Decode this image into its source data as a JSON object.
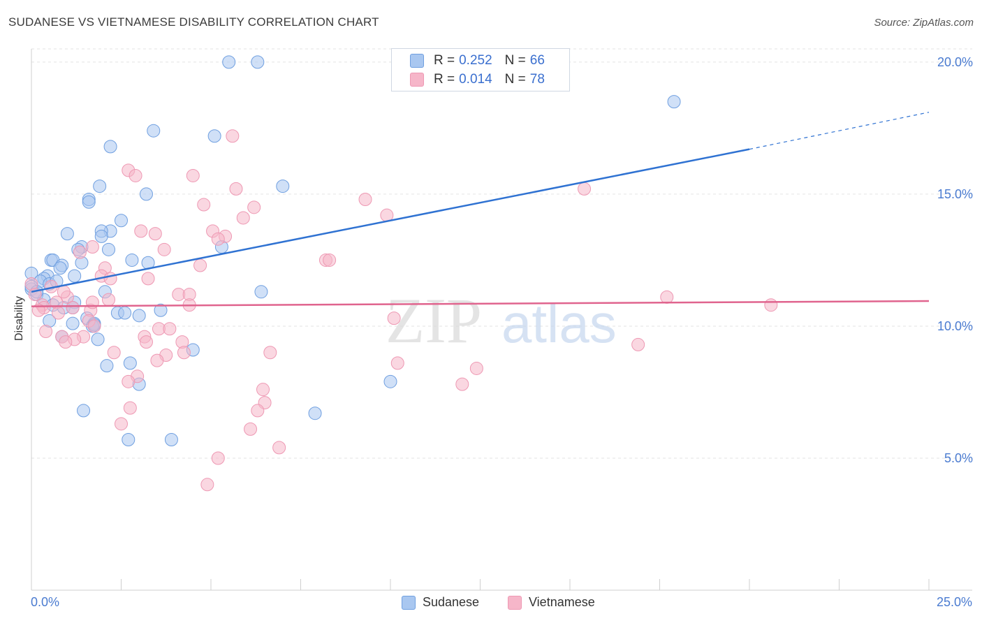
{
  "header": {
    "title": "SUDANESE VS VIETNAMESE DISABILITY CORRELATION CHART",
    "source": "Source: ZipAtlas.com"
  },
  "watermark": {
    "part1": "ZIP",
    "part2": "atlas"
  },
  "legend": {
    "rows": [
      {
        "r_label": "R =",
        "r_value": "0.252",
        "n_label": "N =",
        "n_value": "66"
      },
      {
        "r_label": "R =",
        "r_value": "0.014",
        "n_label": "N =",
        "n_value": "78"
      }
    ]
  },
  "bottom_legend": [
    {
      "label": "Sudanese"
    },
    {
      "label": "Vietnamese"
    }
  ],
  "axis_labels": {
    "x_min": "0.0%",
    "x_max": "25.0%"
  },
  "colors": {
    "blue_fill": "#a9c7f0",
    "blue_stroke": "#6f9fe0",
    "blue_line": "#2f72d2",
    "pink_fill": "#f6b6c9",
    "pink_stroke": "#ee98b3",
    "pink_line": "#e0648e",
    "tick_label": "#4a7bd0",
    "grid": "#e3e3e3"
  },
  "chart_data": {
    "type": "scatter",
    "title": "SUDANESE VS VIETNAMESE DISABILITY CORRELATION CHART",
    "xlabel": "",
    "ylabel": "Disability",
    "xlim": [
      0,
      25
    ],
    "ylim": [
      0,
      20.5
    ],
    "yticks": [
      5,
      10,
      15,
      20
    ],
    "ytick_labels": [
      "5.0%",
      "10.0%",
      "15.0%",
      "20.0%"
    ],
    "grid": true,
    "legend_position": "top-center",
    "series": [
      {
        "name": "Sudanese",
        "r": 0.252,
        "n": 66,
        "trend": {
          "x0": 0,
          "y0": 11.3,
          "x1": 20,
          "y1": 16.7,
          "dashed_to_x": 25,
          "dashed_to_y": 18.1
        },
        "points": [
          [
            5.5,
            20.0
          ],
          [
            6.3,
            20.0
          ],
          [
            17.9,
            18.5
          ],
          [
            3.4,
            17.4
          ],
          [
            5.1,
            17.2
          ],
          [
            2.2,
            16.8
          ],
          [
            7.0,
            15.3
          ],
          [
            1.9,
            15.3
          ],
          [
            3.2,
            15.0
          ],
          [
            1.6,
            14.8
          ],
          [
            1.6,
            14.7
          ],
          [
            2.5,
            14.0
          ],
          [
            1.0,
            13.5
          ],
          [
            2.2,
            13.6
          ],
          [
            1.95,
            13.6
          ],
          [
            1.95,
            13.4
          ],
          [
            1.4,
            13.0
          ],
          [
            1.3,
            12.9
          ],
          [
            5.3,
            13.0
          ],
          [
            2.15,
            12.9
          ],
          [
            0.55,
            12.5
          ],
          [
            0.6,
            12.5
          ],
          [
            2.8,
            12.5
          ],
          [
            3.25,
            12.4
          ],
          [
            1.4,
            12.4
          ],
          [
            0.85,
            12.3
          ],
          [
            0.8,
            12.2
          ],
          [
            0.0,
            12.0
          ],
          [
            1.2,
            11.9
          ],
          [
            0.45,
            11.9
          ],
          [
            0.35,
            11.8
          ],
          [
            0.25,
            11.7
          ],
          [
            0.5,
            11.6
          ],
          [
            0.7,
            11.7
          ],
          [
            0.0,
            11.4
          ],
          [
            2.05,
            11.3
          ],
          [
            6.4,
            11.3
          ],
          [
            0.15,
            11.2
          ],
          [
            0.35,
            11.0
          ],
          [
            1.2,
            10.9
          ],
          [
            0.6,
            10.8
          ],
          [
            0.9,
            10.7
          ],
          [
            1.15,
            10.7
          ],
          [
            3.6,
            10.6
          ],
          [
            2.4,
            10.5
          ],
          [
            2.6,
            10.5
          ],
          [
            3.0,
            10.4
          ],
          [
            1.55,
            10.3
          ],
          [
            0.5,
            10.2
          ],
          [
            1.15,
            10.1
          ],
          [
            1.75,
            10.1
          ],
          [
            1.7,
            10.0
          ],
          [
            0.85,
            9.6
          ],
          [
            1.85,
            9.5
          ],
          [
            4.5,
            9.1
          ],
          [
            2.1,
            8.5
          ],
          [
            2.75,
            8.6
          ],
          [
            3.0,
            7.8
          ],
          [
            10.0,
            7.9
          ],
          [
            1.45,
            6.8
          ],
          [
            7.9,
            6.7
          ],
          [
            2.7,
            5.7
          ],
          [
            3.9,
            5.7
          ],
          [
            0.0,
            11.5
          ],
          [
            0.15,
            11.3
          ],
          [
            1.75,
            10.05
          ]
        ]
      },
      {
        "name": "Vietnamese",
        "r": 0.014,
        "n": 78,
        "trend": {
          "x0": 0,
          "y0": 10.75,
          "x1": 25,
          "y1": 10.95
        },
        "points": [
          [
            5.6,
            17.2
          ],
          [
            2.7,
            15.9
          ],
          [
            2.9,
            15.7
          ],
          [
            4.5,
            15.7
          ],
          [
            5.7,
            15.2
          ],
          [
            15.4,
            15.2
          ],
          [
            9.3,
            14.8
          ],
          [
            4.8,
            14.6
          ],
          [
            6.2,
            14.5
          ],
          [
            9.9,
            14.2
          ],
          [
            5.9,
            14.1
          ],
          [
            5.05,
            13.6
          ],
          [
            3.05,
            13.6
          ],
          [
            3.45,
            13.5
          ],
          [
            5.4,
            13.4
          ],
          [
            5.2,
            13.3
          ],
          [
            1.7,
            13.0
          ],
          [
            3.7,
            12.9
          ],
          [
            1.35,
            12.8
          ],
          [
            8.2,
            12.5
          ],
          [
            8.3,
            12.5
          ],
          [
            4.7,
            12.3
          ],
          [
            2.05,
            12.2
          ],
          [
            1.95,
            11.9
          ],
          [
            3.25,
            11.8
          ],
          [
            2.2,
            11.8
          ],
          [
            0.0,
            11.6
          ],
          [
            0.55,
            11.5
          ],
          [
            0.1,
            11.2
          ],
          [
            4.1,
            11.2
          ],
          [
            4.4,
            11.2
          ],
          [
            17.7,
            11.1
          ],
          [
            1.0,
            11.1
          ],
          [
            2.15,
            11.0
          ],
          [
            0.7,
            10.9
          ],
          [
            0.3,
            10.8
          ],
          [
            0.35,
            10.7
          ],
          [
            0.2,
            10.6
          ],
          [
            20.6,
            10.8
          ],
          [
            4.4,
            10.8
          ],
          [
            1.15,
            10.7
          ],
          [
            1.65,
            10.6
          ],
          [
            0.75,
            10.5
          ],
          [
            10.1,
            10.3
          ],
          [
            1.6,
            10.2
          ],
          [
            1.75,
            10.0
          ],
          [
            3.55,
            9.9
          ],
          [
            3.85,
            9.9
          ],
          [
            0.4,
            9.8
          ],
          [
            3.15,
            9.6
          ],
          [
            0.85,
            9.6
          ],
          [
            1.45,
            9.6
          ],
          [
            1.2,
            9.5
          ],
          [
            0.95,
            9.4
          ],
          [
            3.2,
            9.4
          ],
          [
            4.2,
            9.4
          ],
          [
            16.9,
            9.3
          ],
          [
            2.3,
            9.0
          ],
          [
            4.25,
            9.0
          ],
          [
            6.65,
            9.0
          ],
          [
            3.75,
            8.9
          ],
          [
            3.5,
            8.7
          ],
          [
            10.2,
            8.6
          ],
          [
            12.4,
            8.4
          ],
          [
            2.95,
            8.1
          ],
          [
            2.7,
            7.9
          ],
          [
            12.0,
            7.8
          ],
          [
            6.45,
            7.6
          ],
          [
            6.5,
            7.1
          ],
          [
            2.75,
            6.9
          ],
          [
            6.3,
            6.8
          ],
          [
            2.5,
            6.3
          ],
          [
            6.1,
            6.1
          ],
          [
            6.9,
            5.4
          ],
          [
            5.2,
            5.0
          ],
          [
            4.9,
            4.0
          ],
          [
            1.7,
            10.9
          ],
          [
            0.9,
            11.3
          ]
        ]
      }
    ]
  }
}
